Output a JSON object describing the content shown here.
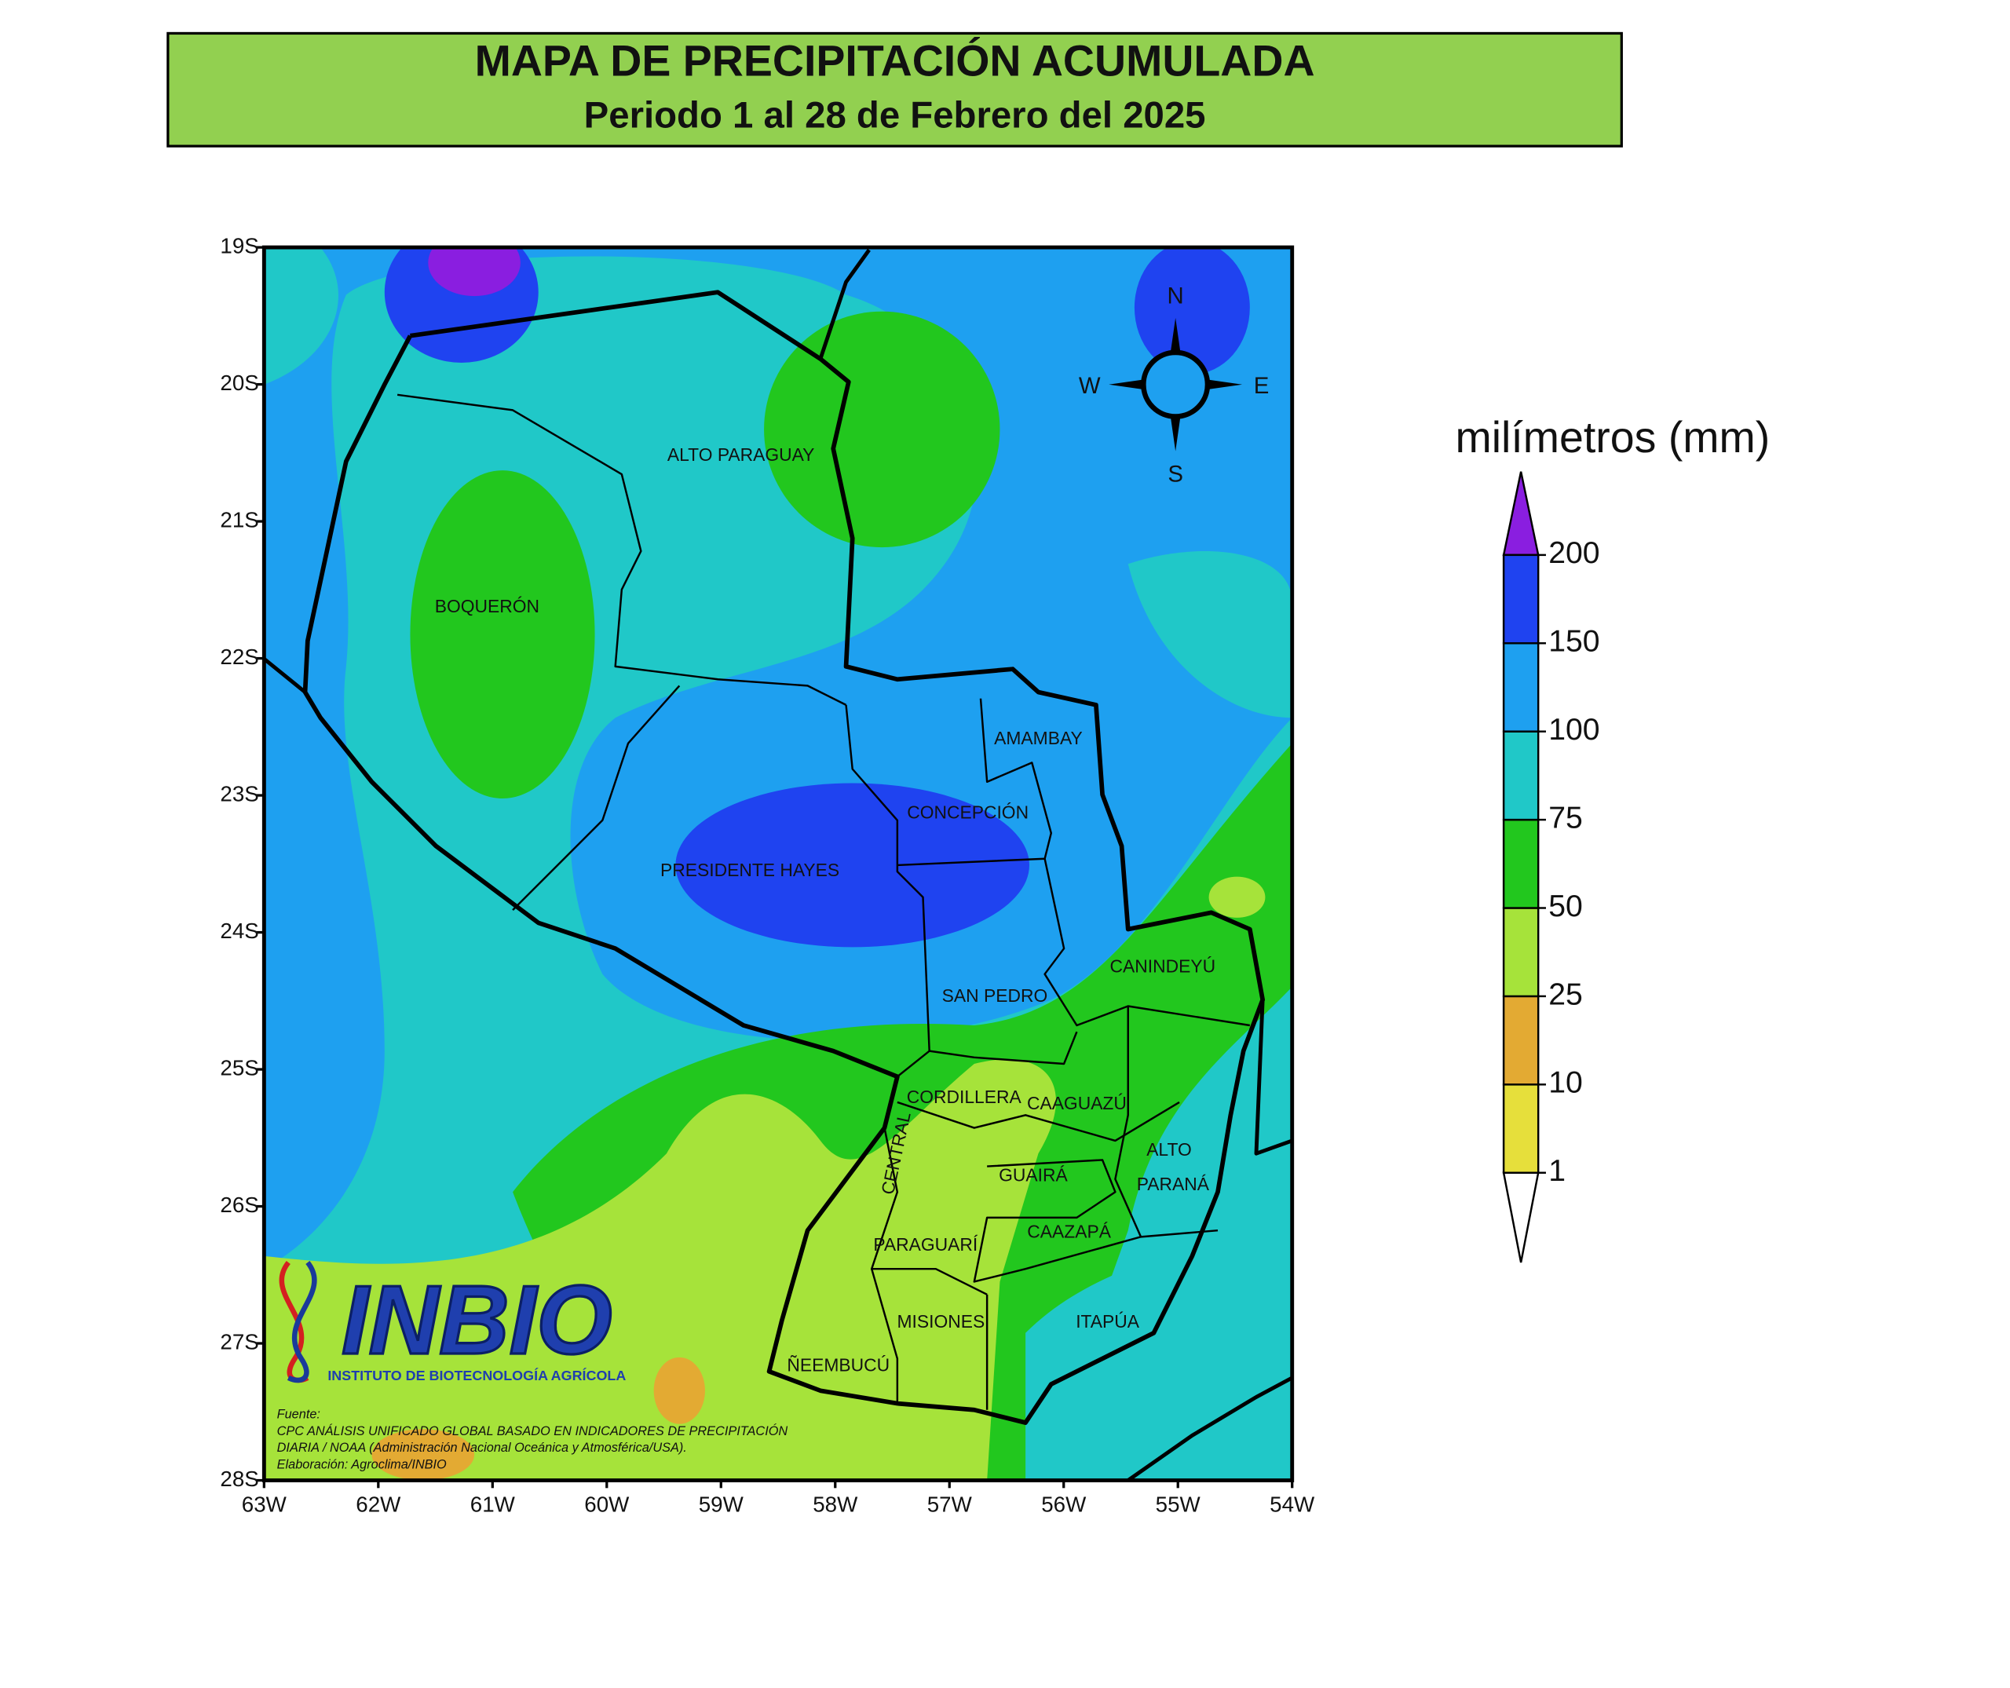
{
  "header": {
    "title": "MAPA DE PRECIPITACIÓN ACUMULADA",
    "subtitle": "Periodo 1 al 28 de Febrero del 2025"
  },
  "map": {
    "lat_labels": [
      "19S",
      "20S",
      "21S",
      "22S",
      "23S",
      "24S",
      "25S",
      "26S",
      "27S",
      "28S"
    ],
    "lon_labels": [
      "63W",
      "62W",
      "61W",
      "60W",
      "59W",
      "58W",
      "57W",
      "56W",
      "55W",
      "54W"
    ],
    "regions": [
      "ALTO PARAGUAY",
      "BOQUERÓN",
      "AMAMBAY",
      "CONCEPCIÓN",
      "PRESIDENTE HAYES",
      "CANINDEYÚ",
      "SAN PEDRO",
      "CORDILLERA",
      "CAAGUAZÚ",
      "CENTRAL",
      "ALTO",
      "PARANÁ",
      "GUAIRÁ",
      "CAAZAPÁ",
      "PARAGUARÍ",
      "MISIONES",
      "ITAPÚA",
      "ÑEEMBUCÚ"
    ],
    "compass": {
      "north": "N",
      "west": "W",
      "east": "E",
      "south": "S"
    }
  },
  "legend": {
    "title": "milímetros (mm)",
    "levels": [
      1,
      10,
      25,
      50,
      75,
      100,
      150,
      200
    ],
    "colors": [
      "#ffffff",
      "#e6df3b",
      "#e3aa33",
      "#a6e33a",
      "#22c71e",
      "#20c8c8",
      "#1ea0f0",
      "#1f43f0",
      "#8a1ee0"
    ]
  },
  "logo": {
    "name": "INBIO",
    "subtitle": "INSTITUTO DE BIOTECNOLOGÍA AGRÍCOLA"
  },
  "source": [
    "Fuente:",
    "CPC ANÁLISIS UNIFICADO GLOBAL BASADO EN INDICADORES DE PRECIPITACIÓN",
    "DIARIA / NOAA (Administración Nacional Oceánica y Atmosférica/USA).",
    "Elaboración: Agroclima/INBIO"
  ]
}
